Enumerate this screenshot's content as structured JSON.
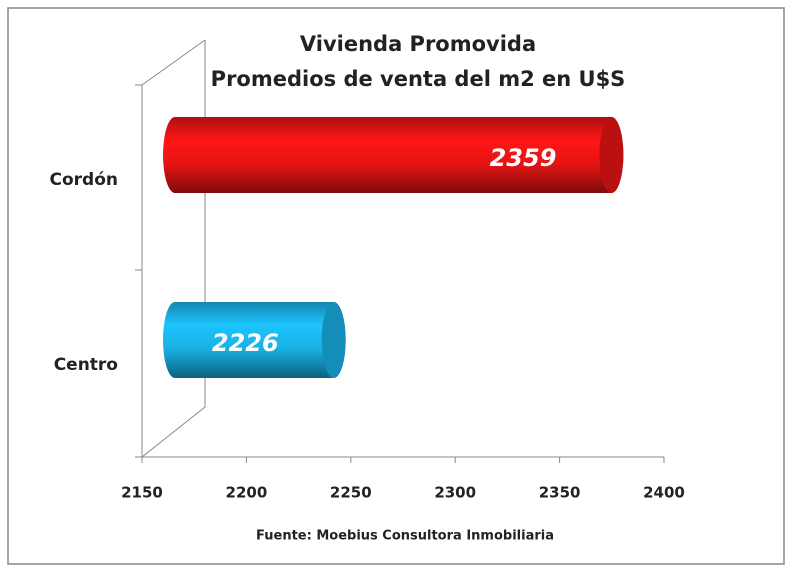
{
  "chart_data": {
    "type": "bar3d-horizontal",
    "title": "Vivienda Promovida",
    "subtitle": "Promedios de venta del m2 en U$S",
    "source": "Fuente: Moebius Consultora Inmobiliaria",
    "categories": [
      "Cordón",
      "Centro"
    ],
    "values": [
      2359,
      2226
    ],
    "colors": [
      "#e81414",
      "#19b2e6"
    ],
    "xlim": [
      2150,
      2400
    ],
    "xticks": [
      2150,
      2200,
      2250,
      2300,
      2350,
      2400
    ]
  }
}
